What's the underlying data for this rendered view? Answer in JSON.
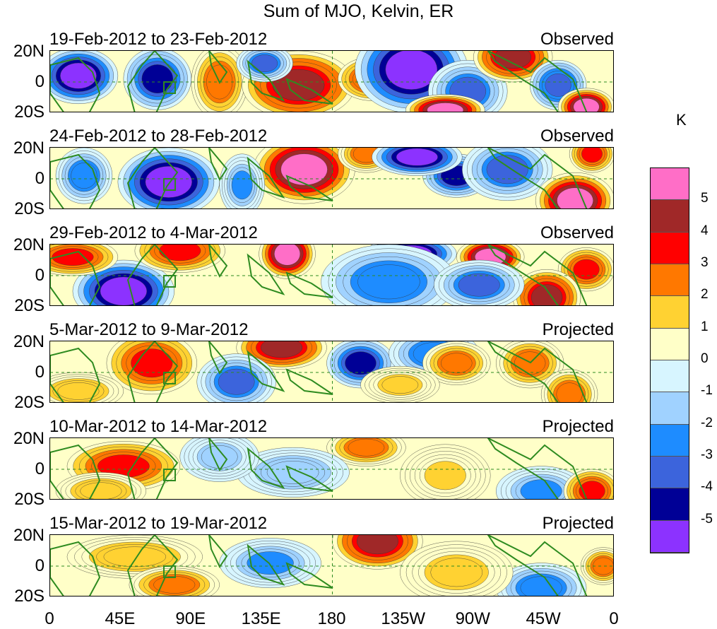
{
  "title": "Sum of MJO, Kelvin, ER",
  "unit": "K",
  "panels": [
    {
      "date": "19-Feb-2012 to 23-Feb-2012",
      "status": "Observed"
    },
    {
      "date": "24-Feb-2012 to 28-Feb-2012",
      "status": "Observed"
    },
    {
      "date": "29-Feb-2012 to 4-Mar-2012",
      "status": "Observed"
    },
    {
      "date": "5-Mar-2012 to 9-Mar-2012",
      "status": "Projected"
    },
    {
      "date": "10-Mar-2012 to 14-Mar-2012",
      "status": "Projected"
    },
    {
      "date": "15-Mar-2012 to 19-Mar-2012",
      "status": "Projected"
    }
  ],
  "lat_labels": [
    "20N",
    "0",
    "20S"
  ],
  "lon_labels": [
    "0",
    "45E",
    "90E",
    "135E",
    "180",
    "135W",
    "90W",
    "45W",
    "0"
  ],
  "colorbar": {
    "labels": [
      "5",
      "4",
      "3",
      "2",
      "1",
      "0",
      "-1",
      "-2",
      "-3",
      "-4",
      "-5"
    ],
    "colors": [
      "#ff6ec7",
      "#a02828",
      "#ff0000",
      "#ff7800",
      "#ffd232",
      "#ffffc8",
      "#d7f5ff",
      "#a0d2ff",
      "#1e8cff",
      "#3c64dc",
      "#000096",
      "#8c32ff"
    ]
  },
  "map": {
    "lon_range": [
      0,
      360
    ],
    "lat_range": [
      -20,
      20
    ]
  }
}
